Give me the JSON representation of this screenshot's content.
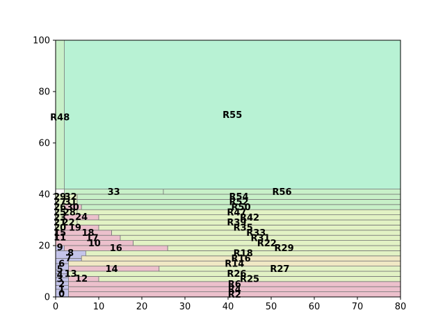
{
  "chart_data": {
    "type": "treemap-partition",
    "title": "",
    "xlabel": "",
    "ylabel": "",
    "xlim": [
      0,
      80
    ],
    "ylim": [
      0,
      100
    ],
    "xticks": [
      "0",
      "10",
      "20",
      "30",
      "40",
      "50",
      "60",
      "70",
      "80"
    ],
    "yticks": [
      "0",
      "20",
      "40",
      "60",
      "80",
      "100"
    ],
    "grid": false,
    "legend": "none",
    "colors": {
      "blue": "#c4c4ea",
      "pink": "#ecc0cc",
      "cream": "#f0e8c4",
      "lime": "#e2f2c4",
      "green": "#c8f0c8",
      "mint": "#b8f2d4",
      "edge": "#777777"
    },
    "label_positions": "in data units (anchor x, y of text)",
    "rects": [
      {
        "name": "0",
        "x0": 0,
        "x1": 3,
        "y0": 0,
        "y1": 3,
        "color": "blue"
      },
      {
        "name": "1",
        "x0": 0,
        "x1": 3,
        "y0": 3,
        "y1": 4.5,
        "color": "blue"
      },
      {
        "name": "2",
        "x0": 0,
        "x1": 3,
        "y0": 4.5,
        "y1": 6,
        "color": "blue"
      },
      {
        "name": "3",
        "x0": 0,
        "x1": 3,
        "y0": 6,
        "y1": 7.5,
        "color": "blue"
      },
      {
        "name": "4",
        "x0": 0,
        "x1": 3,
        "y0": 7.5,
        "y1": 9,
        "color": "blue"
      },
      {
        "name": "5",
        "x0": 0,
        "x1": 3,
        "y0": 9,
        "y1": 10.5,
        "color": "blue"
      },
      {
        "name": "6",
        "x0": 0,
        "x1": 3,
        "y0": 10.5,
        "y1": 13,
        "color": "blue"
      },
      {
        "name": "7",
        "x0": 0,
        "x1": 6,
        "y0": 13,
        "y1": 15,
        "color": "blue"
      },
      {
        "name": "8",
        "x0": 0,
        "x1": 7,
        "y0": 15,
        "y1": 18,
        "color": "blue"
      },
      {
        "name": "9",
        "x0": 0,
        "x1": 2,
        "y0": 18,
        "y1": 21,
        "color": "blue"
      },
      {
        "name": "10",
        "x0": 0,
        "x1": 18,
        "y0": 20,
        "y1": 22,
        "color": "pink"
      },
      {
        "name": "11",
        "x0": 0,
        "x1": 2,
        "y0": 22,
        "y1": 24,
        "color": "pink"
      },
      {
        "name": "12",
        "x0": 3,
        "x1": 10,
        "y0": 6,
        "y1": 8,
        "color": "pink"
      },
      {
        "name": "13",
        "x0": 3,
        "x1": 3,
        "y0": 8,
        "y1": 10,
        "color": "pink"
      },
      {
        "name": "14",
        "x0": 3,
        "x1": 24,
        "y0": 10,
        "y1": 12,
        "color": "pink"
      },
      {
        "name": "15",
        "x0": 0,
        "x1": 2,
        "y0": 24,
        "y1": 26,
        "color": "pink"
      },
      {
        "name": "16",
        "x0": 2,
        "x1": 26,
        "y0": 18,
        "y1": 20,
        "color": "pink"
      },
      {
        "name": "17",
        "x0": 0,
        "x1": 15,
        "y0": 22,
        "y1": 24,
        "color": "pink"
      },
      {
        "name": "18",
        "x0": 0,
        "x1": 13,
        "y0": 24,
        "y1": 26,
        "color": "pink"
      },
      {
        "name": "19",
        "x0": 0,
        "x1": 10,
        "y0": 26,
        "y1": 28,
        "color": "pink"
      },
      {
        "name": "20",
        "x0": 0,
        "x1": 2,
        "y0": 26,
        "y1": 28,
        "color": "lime"
      },
      {
        "name": "21",
        "x0": 0,
        "x1": 2,
        "y0": 28,
        "y1": 30,
        "color": "lime"
      },
      {
        "name": "22",
        "x0": 2,
        "x1": 5,
        "y0": 28,
        "y1": 30,
        "color": "lime"
      },
      {
        "name": "23",
        "x0": 0,
        "x1": 2,
        "y0": 30,
        "y1": 32,
        "color": "lime"
      },
      {
        "name": "24",
        "x0": 2,
        "x1": 10,
        "y0": 30,
        "y1": 32,
        "color": "pink"
      },
      {
        "name": "25",
        "x0": 0,
        "x1": 2,
        "y0": 32,
        "y1": 34,
        "color": "lime"
      },
      {
        "name": "26",
        "x0": 0,
        "x1": 2,
        "y0": 34,
        "y1": 36,
        "color": "lime"
      },
      {
        "name": "27",
        "x0": 0,
        "x1": 2,
        "y0": 36,
        "y1": 38,
        "color": "lime"
      },
      {
        "name": "28",
        "x0": 2,
        "x1": 5,
        "y0": 32,
        "y1": 34,
        "color": "lime"
      },
      {
        "name": "29",
        "x0": 0,
        "x1": 2,
        "y0": 38,
        "y1": 40,
        "color": "lime"
      },
      {
        "name": "30",
        "x0": 2,
        "x1": 6,
        "y0": 34,
        "y1": 36,
        "color": "pink"
      },
      {
        "name": "31",
        "x0": 2,
        "x1": 5,
        "y0": 36,
        "y1": 38,
        "color": "lime"
      },
      {
        "name": "32",
        "x0": 2,
        "x1": 5,
        "y0": 38,
        "y1": 40,
        "color": "lime"
      },
      {
        "name": "33",
        "x0": 2,
        "x1": 25,
        "y0": 40,
        "y1": 42,
        "color": "green"
      },
      {
        "name": "R2",
        "x0": 3,
        "x1": 80,
        "y0": 0,
        "y1": 2,
        "color": "pink"
      },
      {
        "name": "R4",
        "x0": 3,
        "x1": 80,
        "y0": 2,
        "y1": 4,
        "color": "pink"
      },
      {
        "name": "R6",
        "x0": 3,
        "x1": 80,
        "y0": 4,
        "y1": 6,
        "color": "pink"
      },
      {
        "name": "R25",
        "x0": 10,
        "x1": 80,
        "y0": 6,
        "y1": 8,
        "color": "lime"
      },
      {
        "name": "R26",
        "x0": 3,
        "x1": 80,
        "y0": 8,
        "y1": 10,
        "color": "lime"
      },
      {
        "name": "R27",
        "x0": 24,
        "x1": 80,
        "y0": 10,
        "y1": 12,
        "color": "lime"
      },
      {
        "name": "R14",
        "x0": 3,
        "x1": 80,
        "y0": 12,
        "y1": 14,
        "color": "cream"
      },
      {
        "name": "R16",
        "x0": 6,
        "x1": 80,
        "y0": 14,
        "y1": 16,
        "color": "cream"
      },
      {
        "name": "R18",
        "x0": 7,
        "x1": 80,
        "y0": 16,
        "y1": 18,
        "color": "lime"
      },
      {
        "name": "R29",
        "x0": 26,
        "x1": 80,
        "y0": 18,
        "y1": 20,
        "color": "lime"
      },
      {
        "name": "R22",
        "x0": 18,
        "x1": 80,
        "y0": 20,
        "y1": 22,
        "color": "lime"
      },
      {
        "name": "R31",
        "x0": 15,
        "x1": 80,
        "y0": 22,
        "y1": 24,
        "color": "lime"
      },
      {
        "name": "R33",
        "x0": 13,
        "x1": 80,
        "y0": 24,
        "y1": 26,
        "color": "lime"
      },
      {
        "name": "R35",
        "x0": 10,
        "x1": 80,
        "y0": 26,
        "y1": 28,
        "color": "lime"
      },
      {
        "name": "R39",
        "x0": 5,
        "x1": 80,
        "y0": 28,
        "y1": 30,
        "color": "lime"
      },
      {
        "name": "R42",
        "x0": 10,
        "x1": 80,
        "y0": 30,
        "y1": 32,
        "color": "lime"
      },
      {
        "name": "R47",
        "x0": 5,
        "x1": 80,
        "y0": 32,
        "y1": 34,
        "color": "lime"
      },
      {
        "name": "R50",
        "x0": 6,
        "x1": 80,
        "y0": 34,
        "y1": 36,
        "color": "green"
      },
      {
        "name": "R52",
        "x0": 5,
        "x1": 80,
        "y0": 36,
        "y1": 38,
        "color": "green"
      },
      {
        "name": "R54",
        "x0": 5,
        "x1": 80,
        "y0": 38,
        "y1": 40,
        "color": "green"
      },
      {
        "name": "R56",
        "x0": 25,
        "x1": 80,
        "y0": 40,
        "y1": 42,
        "color": "green"
      },
      {
        "name": "R48",
        "x0": 0,
        "x1": 2,
        "y0": 42,
        "y1": 100,
        "color": "green"
      },
      {
        "name": "R55",
        "x0": 2,
        "x1": 80,
        "y0": 42,
        "y1": 100,
        "color": "mint"
      }
    ],
    "labels": [
      {
        "text": "0",
        "x": 1.4,
        "y": 1.2
      },
      {
        "text": "1",
        "x": 1.4,
        "y": 3.0
      },
      {
        "text": "2",
        "x": 1.4,
        "y": 5.0
      },
      {
        "text": "3",
        "x": 1.0,
        "y": 7.0
      },
      {
        "text": "4",
        "x": 1.0,
        "y": 8.7
      },
      {
        "text": "5",
        "x": 1.0,
        "y": 10.8
      },
      {
        "text": "6",
        "x": 1.4,
        "y": 13.0
      },
      {
        "text": "7",
        "x": 3.0,
        "y": 15.2
      },
      {
        "text": "8",
        "x": 3.5,
        "y": 17.2
      },
      {
        "text": "9",
        "x": 1.0,
        "y": 19.3
      },
      {
        "text": "10",
        "x": 9.0,
        "y": 21.0
      },
      {
        "text": "11",
        "x": 1.0,
        "y": 23.2
      },
      {
        "text": "12",
        "x": 6.0,
        "y": 7.2
      },
      {
        "text": "13",
        "x": 3.5,
        "y": 9.0
      },
      {
        "text": "14",
        "x": 13.0,
        "y": 11.0
      },
      {
        "text": "15",
        "x": 1.0,
        "y": 25.0
      },
      {
        "text": "16",
        "x": 14.0,
        "y": 19.0
      },
      {
        "text": "17",
        "x": 8.5,
        "y": 23.0
      },
      {
        "text": "18",
        "x": 7.5,
        "y": 25.0
      },
      {
        "text": "19",
        "x": 4.5,
        "y": 27.0
      },
      {
        "text": "20",
        "x": 1.0,
        "y": 27.0
      },
      {
        "text": "21",
        "x": 1.0,
        "y": 29.0
      },
      {
        "text": "22",
        "x": 3.0,
        "y": 29.0
      },
      {
        "text": "23",
        "x": 1.0,
        "y": 31.0
      },
      {
        "text": "24",
        "x": 6.0,
        "y": 31.2
      },
      {
        "text": "25",
        "x": 1.0,
        "y": 33.0
      },
      {
        "text": "26",
        "x": 1.0,
        "y": 35.0
      },
      {
        "text": "27",
        "x": 1.0,
        "y": 37.0
      },
      {
        "text": "28",
        "x": 3.2,
        "y": 33.0
      },
      {
        "text": "29",
        "x": 1.0,
        "y": 39.0
      },
      {
        "text": "30",
        "x": 4.0,
        "y": 35.0
      },
      {
        "text": "31",
        "x": 3.5,
        "y": 37.0
      },
      {
        "text": "32",
        "x": 3.5,
        "y": 39.0
      },
      {
        "text": "33",
        "x": 13.5,
        "y": 41.0
      },
      {
        "text": "R2",
        "x": 41.5,
        "y": 1.0
      },
      {
        "text": "R4",
        "x": 41.5,
        "y": 3.0
      },
      {
        "text": "R6",
        "x": 41.5,
        "y": 5.0
      },
      {
        "text": "R25",
        "x": 45.0,
        "y": 7.0
      },
      {
        "text": "R26",
        "x": 42.0,
        "y": 9.0
      },
      {
        "text": "R27",
        "x": 52.0,
        "y": 11.0
      },
      {
        "text": "R14",
        "x": 41.5,
        "y": 13.0
      },
      {
        "text": "R16",
        "x": 43.0,
        "y": 15.0
      },
      {
        "text": "R18",
        "x": 43.5,
        "y": 17.0
      },
      {
        "text": "R29",
        "x": 53.0,
        "y": 19.0
      },
      {
        "text": "R22",
        "x": 49.0,
        "y": 21.0
      },
      {
        "text": "R31",
        "x": 47.5,
        "y": 23.0
      },
      {
        "text": "R33",
        "x": 46.5,
        "y": 25.0
      },
      {
        "text": "R35",
        "x": 43.5,
        "y": 27.0
      },
      {
        "text": "R39",
        "x": 42.0,
        "y": 29.0
      },
      {
        "text": "R42",
        "x": 45.0,
        "y": 31.0
      },
      {
        "text": "R47",
        "x": 42.0,
        "y": 33.0
      },
      {
        "text": "R50",
        "x": 43.0,
        "y": 35.0
      },
      {
        "text": "R52",
        "x": 42.5,
        "y": 37.0
      },
      {
        "text": "R54",
        "x": 42.5,
        "y": 39.0
      },
      {
        "text": "R56",
        "x": 52.5,
        "y": 41.0
      },
      {
        "text": "R48",
        "x": 1.0,
        "y": 70.0
      },
      {
        "text": "R55",
        "x": 41.0,
        "y": 71.0
      }
    ]
  }
}
